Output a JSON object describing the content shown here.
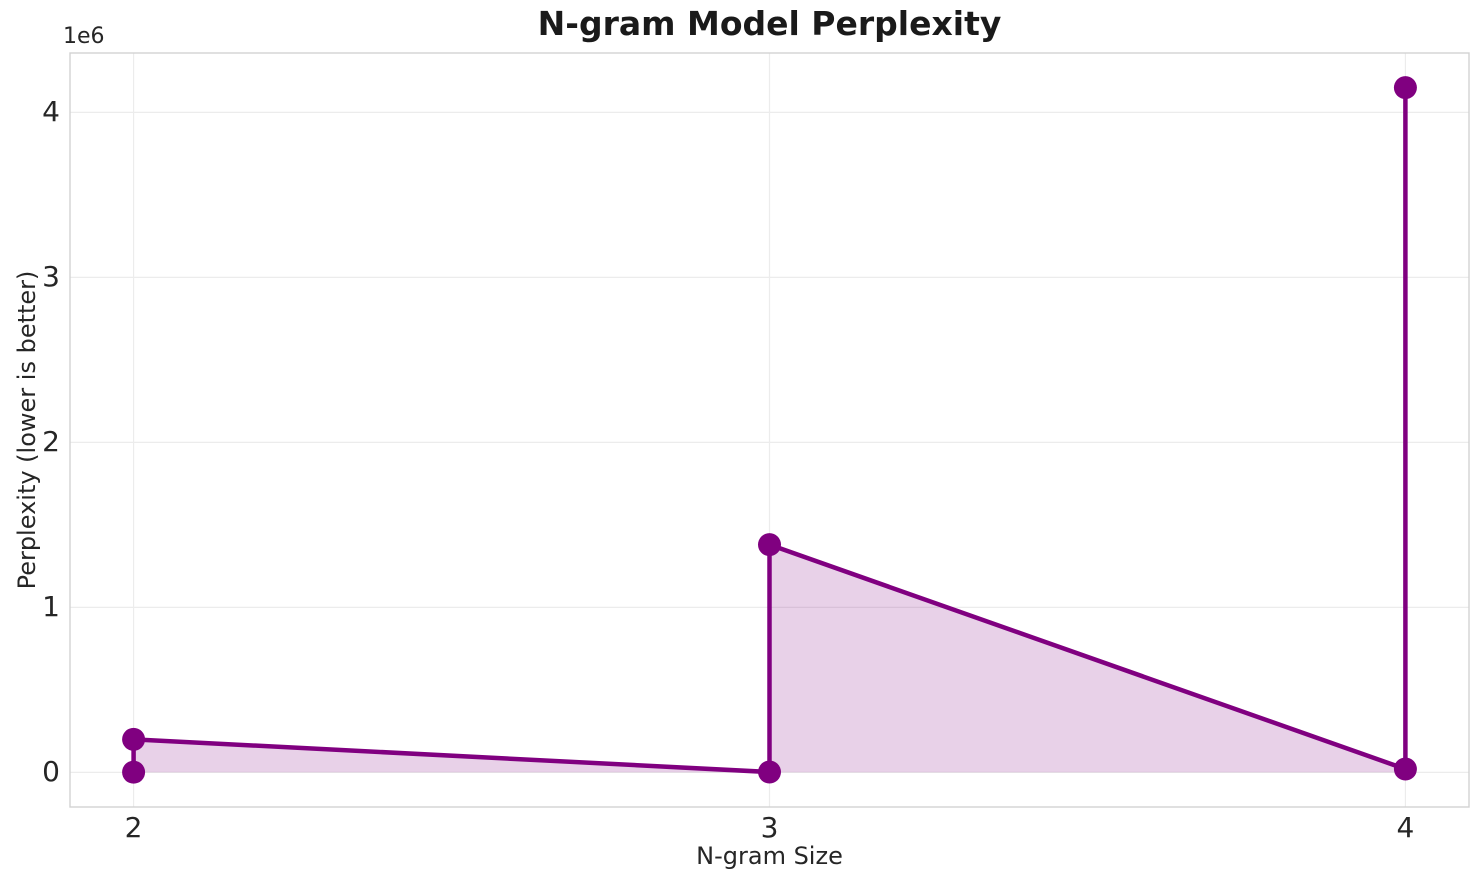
{
  "chart_data": {
    "type": "line",
    "title": "N-gram Model Perplexity",
    "xlabel": "N-gram Size",
    "ylabel": "Perplexity (lower is better)",
    "y_offset_label": "1e6",
    "x": [
      2,
      2,
      3,
      3,
      4,
      4
    ],
    "y": [
      1000,
      200000,
      2000,
      1380000,
      20000,
      4150000
    ],
    "fill_between_zero": true,
    "marker": "circle",
    "legend": false,
    "grid": true,
    "xlim": [
      1.9,
      4.1
    ],
    "ylim": [
      -210000,
      4360000
    ],
    "xticks": [
      2,
      3,
      4
    ],
    "xtick_labels": [
      "2",
      "3",
      "4"
    ],
    "yticks": [
      0,
      1000000,
      2000000,
      3000000,
      4000000
    ],
    "ytick_labels": [
      "0",
      "1",
      "2",
      "3",
      "4"
    ],
    "line_color": "#800080",
    "fill_opacity": 0.18,
    "grid_color": "#ececec",
    "spine_color": "#d2d2d2",
    "text_color": "#262626",
    "title_color": "#1a1a1a"
  }
}
